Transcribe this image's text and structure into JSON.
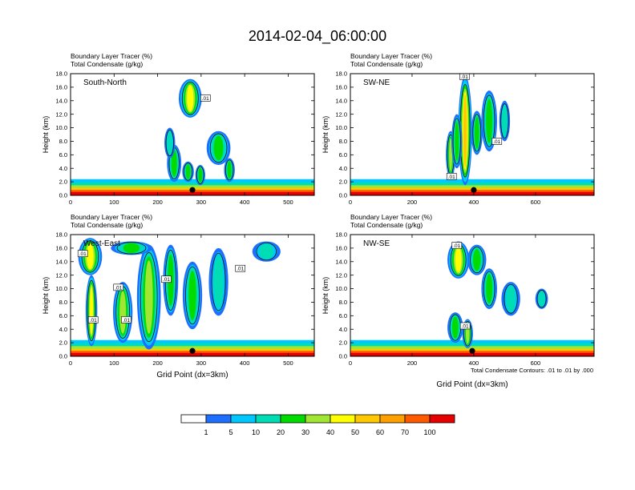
{
  "title": "2014-02-04_06:00:00",
  "chart_data": {
    "type": "heatmap",
    "title": "2014-02-04_06:00:00",
    "colorbar": {
      "colors": [
        "#ffffff",
        "#1e6eff",
        "#00c8ff",
        "#00dcb4",
        "#00dc00",
        "#a0e632",
        "#ffff00",
        "#ffc800",
        "#ffa000",
        "#ff5a00",
        "#e60000"
      ],
      "labels": [
        "1",
        "5",
        "10",
        "20",
        "30",
        "40",
        "50",
        "60",
        "70",
        "100"
      ]
    },
    "footnote": "Total Condensate Contours: .01 to .01 by .000",
    "panels": [
      {
        "name": "South-North",
        "label_line1": "Boundary Layer Tracer   (%)",
        "label_line2": "Total Condensate   (g/kg)",
        "ylabel": "Height (km)",
        "xlabel": "",
        "xlim": [
          0,
          560
        ],
        "ylim": [
          0,
          18
        ],
        "xticks": [
          0,
          100,
          200,
          300,
          400,
          500
        ],
        "yticks": [
          "0.0",
          "2.0",
          "4.0",
          "6.0",
          "8.0",
          "10.0",
          "12.0",
          "14.0",
          "16.0",
          "18.0"
        ],
        "marker_x": 280,
        "contour_labels": [
          {
            "x": 310,
            "y": 14.4,
            "text": ".01"
          }
        ],
        "plumes": [
          {
            "x": 275,
            "w": 38,
            "y0": 11.5,
            "y1": 17.2,
            "i": 6
          },
          {
            "x": 238,
            "w": 18,
            "y0": 2.0,
            "y1": 7.5,
            "i": 4
          },
          {
            "x": 228,
            "w": 10,
            "y0": 5.5,
            "y1": 10.0,
            "i": 3
          },
          {
            "x": 270,
            "w": 12,
            "y0": 2.0,
            "y1": 5.0,
            "i": 4
          },
          {
            "x": 298,
            "w": 8,
            "y0": 1.5,
            "y1": 4.5,
            "i": 4
          },
          {
            "x": 340,
            "w": 40,
            "y0": 4.5,
            "y1": 9.5,
            "i": 4
          },
          {
            "x": 365,
            "w": 10,
            "y0": 2.0,
            "y1": 5.5,
            "i": 4
          }
        ]
      },
      {
        "name": "SW-NE",
        "label_line1": "Boundary Layer Tracer   (%)",
        "label_line2": "Total Condensate   (g/kg)",
        "ylabel": "Height (km)",
        "xlabel": "",
        "xlim": [
          0,
          790
        ],
        "ylim": [
          0,
          18
        ],
        "xticks": [
          0,
          200,
          400,
          600
        ],
        "yticks": [
          "0.0",
          "2.0",
          "4.0",
          "6.0",
          "8.0",
          "10.0",
          "12.0",
          "14.0",
          "16.0",
          "18.0"
        ],
        "marker_x": 400,
        "contour_labels": [
          {
            "x": 370,
            "y": 17.6,
            "text": ".01"
          },
          {
            "x": 475,
            "y": 8.0,
            "text": ".01"
          },
          {
            "x": 328,
            "y": 2.8,
            "text": ".01"
          }
        ],
        "plumes": [
          {
            "x": 372,
            "w": 24,
            "y0": 1.5,
            "y1": 17.6,
            "i": 7
          },
          {
            "x": 325,
            "w": 10,
            "y0": 2.5,
            "y1": 9.5,
            "i": 5
          },
          {
            "x": 345,
            "w": 14,
            "y0": 4.0,
            "y1": 12.0,
            "i": 4
          },
          {
            "x": 410,
            "w": 16,
            "y0": 6.0,
            "y1": 12.5,
            "i": 4
          },
          {
            "x": 450,
            "w": 30,
            "y0": 6.5,
            "y1": 15.5,
            "i": 4
          },
          {
            "x": 500,
            "w": 14,
            "y0": 8.0,
            "y1": 14.0,
            "i": 3
          }
        ]
      },
      {
        "name": "West-East",
        "label_line1": "Boundary Layer Tracer   (%)",
        "label_line2": "Total Condensate   (g/kg)",
        "ylabel": "Height (km)",
        "xlabel": "Grid Point (dx=3km)",
        "xlim": [
          0,
          560
        ],
        "ylim": [
          0,
          18
        ],
        "xticks": [
          0,
          100,
          200,
          300,
          400,
          500
        ],
        "yticks": [
          "0.0",
          "2.0",
          "4.0",
          "6.0",
          "8.0",
          "10.0",
          "12.0",
          "14.0",
          "16.0",
          "18.0"
        ],
        "marker_x": 280,
        "contour_labels": [
          {
            "x": 28,
            "y": 15.2,
            "text": ".01"
          },
          {
            "x": 110,
            "y": 10.2,
            "text": ".01"
          },
          {
            "x": 220,
            "y": 11.4,
            "text": ".01"
          },
          {
            "x": 390,
            "y": 13.0,
            "text": ".01"
          },
          {
            "x": 52,
            "y": 5.4,
            "text": ".01"
          },
          {
            "x": 128,
            "y": 5.4,
            "text": ".01"
          }
        ],
        "plumes": [
          {
            "x": 45,
            "w": 40,
            "y0": 12.0,
            "y1": 17.5,
            "i": 6
          },
          {
            "x": 48,
            "w": 12,
            "y0": 1.5,
            "y1": 12.0,
            "i": 6
          },
          {
            "x": 120,
            "w": 30,
            "y0": 2.0,
            "y1": 11.0,
            "i": 5
          },
          {
            "x": 180,
            "w": 40,
            "y0": 1.0,
            "y1": 16.5,
            "i": 5
          },
          {
            "x": 230,
            "w": 20,
            "y0": 6.0,
            "y1": 16.5,
            "i": 4
          },
          {
            "x": 280,
            "w": 30,
            "y0": 4.0,
            "y1": 14.0,
            "i": 4
          },
          {
            "x": 340,
            "w": 30,
            "y0": 6.0,
            "y1": 16.0,
            "i": 3
          },
          {
            "x": 140,
            "w": 80,
            "y0": 15.0,
            "y1": 17.0,
            "i": 4
          },
          {
            "x": 450,
            "w": 50,
            "y0": 14.0,
            "y1": 17.0,
            "i": 3
          }
        ]
      },
      {
        "name": "NW-SE",
        "label_line1": "Boundary Layer Tracer   (%)",
        "label_line2": "Total Condensate   (g/kg)",
        "ylabel": "Height (km)",
        "xlabel": "Grid Point (dx=3km)",
        "xlim": [
          0,
          790
        ],
        "ylim": [
          0,
          18
        ],
        "xticks": [
          0,
          200,
          400,
          600
        ],
        "yticks": [
          "0.0",
          "2.0",
          "4.0",
          "6.0",
          "8.0",
          "10.0",
          "12.0",
          "14.0",
          "16.0",
          "18.0"
        ],
        "marker_x": 395,
        "contour_labels": [
          {
            "x": 345,
            "y": 16.4,
            "text": ".01"
          },
          {
            "x": 372,
            "y": 4.5,
            "text": ".01"
          }
        ],
        "plumes": [
          {
            "x": 350,
            "w": 50,
            "y0": 11.5,
            "y1": 17.0,
            "i": 6
          },
          {
            "x": 410,
            "w": 40,
            "y0": 12.0,
            "y1": 16.5,
            "i": 4
          },
          {
            "x": 450,
            "w": 30,
            "y0": 7.0,
            "y1": 13.0,
            "i": 4
          },
          {
            "x": 520,
            "w": 40,
            "y0": 6.0,
            "y1": 11.0,
            "i": 3
          },
          {
            "x": 620,
            "w": 20,
            "y0": 7.0,
            "y1": 10.0,
            "i": 3
          },
          {
            "x": 340,
            "w": 30,
            "y0": 2.0,
            "y1": 6.5,
            "i": 4
          },
          {
            "x": 380,
            "w": 14,
            "y0": 1.2,
            "y1": 5.5,
            "i": 5
          }
        ]
      }
    ]
  }
}
